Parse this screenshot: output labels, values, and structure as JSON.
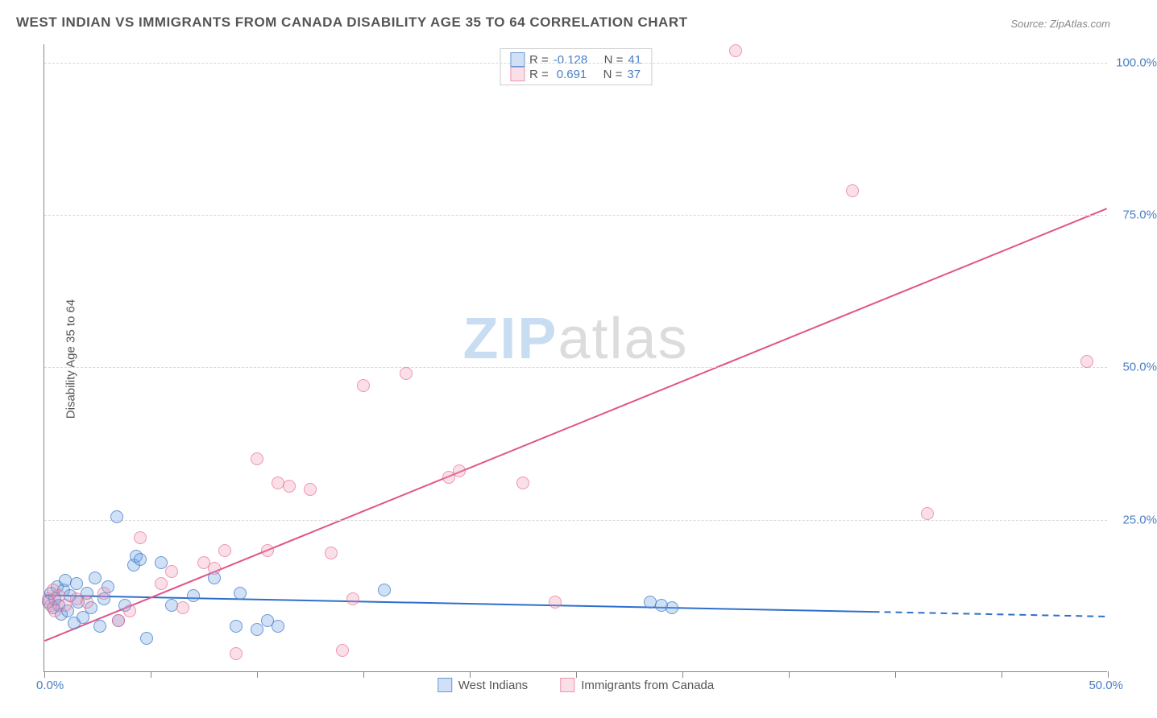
{
  "title": "WEST INDIAN VS IMMIGRANTS FROM CANADA DISABILITY AGE 35 TO 64 CORRELATION CHART",
  "source": "Source: ZipAtlas.com",
  "ylabel": "Disability Age 35 to 64",
  "watermark_a": "ZIP",
  "watermark_b": "atlas",
  "chart": {
    "type": "scatter",
    "xlim": [
      0,
      50
    ],
    "ylim": [
      0,
      103
    ],
    "xticks": [
      0,
      5,
      10,
      15,
      20,
      25,
      30,
      35,
      40,
      45,
      50
    ],
    "yticks": [
      25,
      50,
      75,
      100
    ],
    "xtick_labels": {
      "0": "0.0%",
      "50": "50.0%"
    },
    "ytick_labels": {
      "25": "25.0%",
      "50": "50.0%",
      "75": "75.0%",
      "100": "100.0%"
    },
    "grid_color": "#d8d8d8",
    "axis_color": "#888888",
    "background_color": "#ffffff",
    "marker_radius": 8,
    "series": [
      {
        "id": "s1",
        "label": "West Indians",
        "color_fill": "rgba(120,170,230,0.35)",
        "color_stroke": "rgba(60,120,200,0.7)",
        "R": "-0.128",
        "N": "41",
        "trend": {
          "x1": 0,
          "y1": 12.5,
          "x2": 50,
          "y2": 9.0,
          "solid_until_x": 39,
          "color": "#2f6fc9"
        },
        "points": [
          [
            0.2,
            11.5
          ],
          [
            0.3,
            13.0
          ],
          [
            0.4,
            10.5
          ],
          [
            0.5,
            12.0
          ],
          [
            0.6,
            14.0
          ],
          [
            0.7,
            11.0
          ],
          [
            0.8,
            9.5
          ],
          [
            0.9,
            13.5
          ],
          [
            1.0,
            15.0
          ],
          [
            1.1,
            10.0
          ],
          [
            1.2,
            12.5
          ],
          [
            1.4,
            8.0
          ],
          [
            1.5,
            14.5
          ],
          [
            1.6,
            11.5
          ],
          [
            1.8,
            9.0
          ],
          [
            2.0,
            13.0
          ],
          [
            2.2,
            10.5
          ],
          [
            2.4,
            15.5
          ],
          [
            2.6,
            7.5
          ],
          [
            2.8,
            12.0
          ],
          [
            3.0,
            14.0
          ],
          [
            3.4,
            25.5
          ],
          [
            3.5,
            8.5
          ],
          [
            3.8,
            11.0
          ],
          [
            4.2,
            17.5
          ],
          [
            4.3,
            19.0
          ],
          [
            4.5,
            18.5
          ],
          [
            4.8,
            5.5
          ],
          [
            5.5,
            18.0
          ],
          [
            6.0,
            11.0
          ],
          [
            7.0,
            12.5
          ],
          [
            8.0,
            15.5
          ],
          [
            9.0,
            7.5
          ],
          [
            9.2,
            13.0
          ],
          [
            10.0,
            7.0
          ],
          [
            10.5,
            8.5
          ],
          [
            11.0,
            7.5
          ],
          [
            16.0,
            13.5
          ],
          [
            28.5,
            11.5
          ],
          [
            29.0,
            11.0
          ],
          [
            29.5,
            10.5
          ]
        ]
      },
      {
        "id": "s2",
        "label": "Immigrants from Canada",
        "color_fill": "rgba(240,150,175,0.3)",
        "color_stroke": "rgba(230,100,140,0.6)",
        "R": "0.691",
        "N": "37",
        "trend": {
          "x1": 0,
          "y1": 5.0,
          "x2": 50,
          "y2": 76.0,
          "solid_until_x": 50,
          "color": "#e05588"
        },
        "points": [
          [
            0.2,
            12.0
          ],
          [
            0.3,
            11.0
          ],
          [
            0.4,
            13.5
          ],
          [
            0.5,
            10.0
          ],
          [
            0.7,
            12.5
          ],
          [
            1.0,
            11.0
          ],
          [
            1.5,
            12.0
          ],
          [
            2.0,
            11.5
          ],
          [
            2.8,
            13.0
          ],
          [
            3.5,
            8.5
          ],
          [
            4.0,
            10.0
          ],
          [
            4.5,
            22.0
          ],
          [
            5.5,
            14.5
          ],
          [
            6.0,
            16.5
          ],
          [
            6.5,
            10.5
          ],
          [
            7.5,
            18.0
          ],
          [
            8.0,
            17.0
          ],
          [
            8.5,
            20.0
          ],
          [
            9.0,
            3.0
          ],
          [
            10.0,
            35.0
          ],
          [
            10.5,
            20.0
          ],
          [
            11.0,
            31.0
          ],
          [
            11.5,
            30.5
          ],
          [
            12.5,
            30.0
          ],
          [
            13.5,
            19.5
          ],
          [
            14.0,
            3.5
          ],
          [
            14.5,
            12.0
          ],
          [
            15.0,
            47.0
          ],
          [
            17.0,
            49.0
          ],
          [
            19.0,
            32.0
          ],
          [
            19.5,
            33.0
          ],
          [
            22.5,
            31.0
          ],
          [
            24.0,
            11.5
          ],
          [
            32.5,
            102.0
          ],
          [
            38.0,
            79.0
          ],
          [
            41.5,
            26.0
          ],
          [
            49.0,
            51.0
          ]
        ]
      }
    ]
  },
  "legend_inplot": {
    "labels": {
      "R": "R =",
      "N": "N ="
    }
  }
}
